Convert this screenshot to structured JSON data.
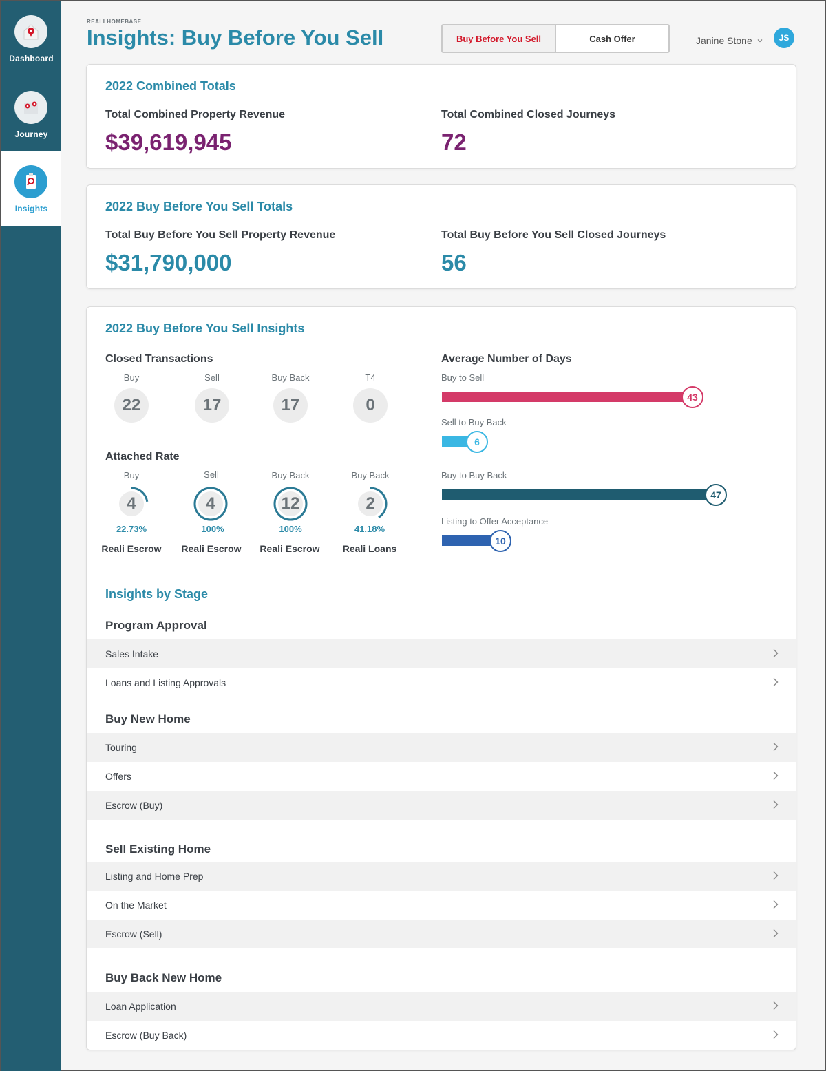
{
  "sidebar": {
    "items": [
      {
        "label": "Dashboard",
        "icon": "house-pin-icon"
      },
      {
        "label": "Journey",
        "icon": "map-pins-icon"
      },
      {
        "label": "Insights",
        "icon": "clipboard-search-icon"
      }
    ]
  },
  "header": {
    "brand": "REALI HOMEBASE",
    "title": "Insights: Buy Before You Sell",
    "toggle": {
      "active": "Buy Before You Sell",
      "other": "Cash Offer"
    },
    "user_name": "Janine Stone",
    "avatar_initials": "JS"
  },
  "combined": {
    "title": "2022 Combined Totals",
    "revenue_label": "Total Combined Property Revenue",
    "revenue_value": "$39,619,945",
    "journeys_label": "Total Combined Closed Journeys",
    "journeys_value": "72"
  },
  "bbys_totals": {
    "title": "2022 Buy Before You Sell Totals",
    "revenue_label": "Total Buy Before You Sell Property Revenue",
    "revenue_value": "$31,790,000",
    "journeys_label": "Total Buy Before You Sell Closed Journeys",
    "journeys_value": "56"
  },
  "insights": {
    "title": "2022 Buy Before You Sell Insights",
    "closed": {
      "title": "Closed Transactions",
      "items": [
        {
          "label": "Buy",
          "value": "22"
        },
        {
          "label": "Sell",
          "value": "17"
        },
        {
          "label": "Buy Back",
          "value": "17"
        },
        {
          "label": "T4",
          "value": "0"
        }
      ]
    },
    "attached": {
      "title": "Attached Rate",
      "items": [
        {
          "label": "Buy",
          "value": "4",
          "pct": "22.73%",
          "fraction": 0.2273,
          "caption": "Reali Escrow"
        },
        {
          "label": "Sell",
          "value": "4",
          "pct": "100%",
          "fraction": 1.0,
          "caption": "Reali Escrow"
        },
        {
          "label": "Buy Back",
          "value": "12",
          "pct": "100%",
          "fraction": 1.0,
          "caption": "Reali Escrow"
        },
        {
          "label": "Buy Back",
          "value": "2",
          "pct": "41.18%",
          "fraction": 0.4118,
          "caption": "Reali Loans"
        }
      ]
    },
    "avg_days": {
      "title": "Average Number of Days",
      "items": [
        {
          "label": "Buy to Sell",
          "value": "43",
          "color": "#d43a68"
        },
        {
          "label": "Sell to Buy Back",
          "value": "6",
          "color": "#3ab7e3"
        },
        {
          "label": "Buy to Buy Back",
          "value": "47",
          "color": "#1f5c70"
        },
        {
          "label": "Listing to Offer Acceptance",
          "value": "10",
          "color": "#2e63b0"
        }
      ]
    },
    "stages": {
      "title": "Insights by Stage",
      "groups": [
        {
          "name": "Program Approval",
          "items": [
            "Sales Intake",
            "Loans and Listing Approvals"
          ]
        },
        {
          "name": "Buy New Home",
          "items": [
            "Touring",
            "Offers",
            "Escrow (Buy)"
          ]
        },
        {
          "name": "Sell Existing Home",
          "items": [
            "Listing and Home Prep",
            "On the Market",
            "Escrow (Sell)"
          ]
        },
        {
          "name": "Buy Back New Home",
          "items": [
            "Loan Application",
            "Escrow (Buy Back)"
          ]
        }
      ]
    }
  },
  "colors": {
    "sidebar": "#235e72",
    "accent": "#2b8aa8",
    "purple": "#7a2270",
    "red": "#d3192b"
  }
}
